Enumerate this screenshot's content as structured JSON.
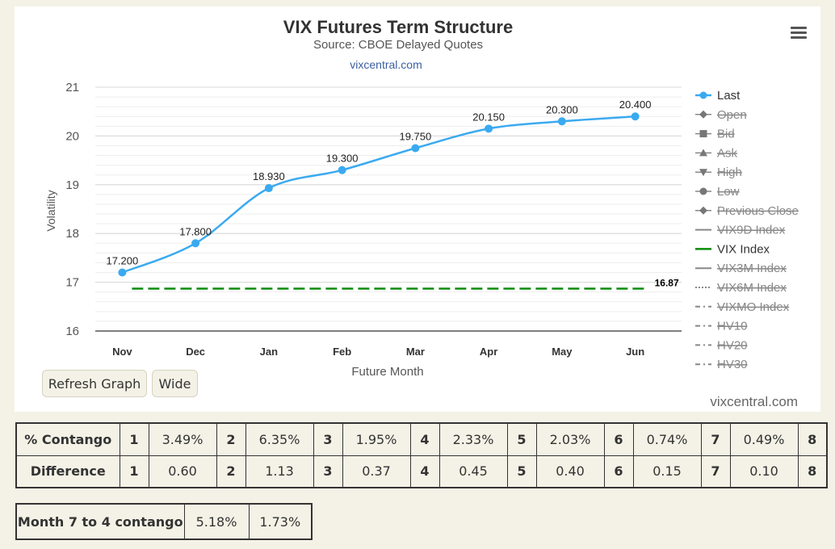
{
  "chart_data": {
    "type": "line",
    "title": "VIX Futures Term Structure",
    "subtitle": "Source: CBOE Delayed Quotes",
    "credit_top": "vixcentral.com",
    "xlabel": "Future Month",
    "ylabel": "Volatility",
    "categories": [
      "Nov",
      "Dec",
      "Jan",
      "Feb",
      "Mar",
      "Apr",
      "May",
      "Jun"
    ],
    "ylim": [
      16,
      21
    ],
    "yticks": [
      "16",
      "17",
      "18",
      "19",
      "20",
      "21"
    ],
    "grid": true,
    "legend_position": "right",
    "series": [
      {
        "name": "Last",
        "values": [
          17.2,
          17.8,
          18.93,
          19.3,
          19.75,
          20.15,
          20.3,
          20.4
        ],
        "labels": [
          "17.200",
          "17.800",
          "18.930",
          "19.300",
          "19.750",
          "20.150",
          "20.300",
          "20.400"
        ],
        "color": "#3aaaf0"
      },
      {
        "name": "VIX Index",
        "value": 16.87,
        "label": "16.87",
        "color": "#0b8c0b"
      }
    ],
    "legend": [
      {
        "name": "Last",
        "symbol": "circle",
        "active": true
      },
      {
        "name": "Open",
        "symbol": "diamond",
        "active": false
      },
      {
        "name": "Bid",
        "symbol": "square",
        "active": false
      },
      {
        "name": "Ask",
        "symbol": "triangle",
        "active": false
      },
      {
        "name": "High",
        "symbol": "triangle-down",
        "active": false
      },
      {
        "name": "Low",
        "symbol": "circle",
        "active": false
      },
      {
        "name": "Previous Close",
        "symbol": "diamond",
        "active": false
      },
      {
        "name": "VIX9D Index",
        "symbol": "line",
        "active": false
      },
      {
        "name": "VIX Index",
        "symbol": "line-green",
        "active": true
      },
      {
        "name": "VIX3M Index",
        "symbol": "line",
        "active": false
      },
      {
        "name": "VIX6M Index",
        "symbol": "dotted",
        "active": false
      },
      {
        "name": "VIXMO Index",
        "symbol": "dashdot",
        "active": false
      },
      {
        "name": "HV10",
        "symbol": "dashdot",
        "active": false
      },
      {
        "name": "HV20",
        "symbol": "dashdot",
        "active": false
      },
      {
        "name": "HV30",
        "symbol": "dashdot",
        "active": false
      }
    ]
  },
  "menu_icon": "hamburger-menu-icon",
  "buttons": {
    "refresh": "Refresh Graph",
    "wide": "Wide"
  },
  "watermark": "vixcentral.com",
  "contango_table": {
    "row1_label": "% Contango",
    "row1": [
      {
        "n": "1",
        "v": "3.49%"
      },
      {
        "n": "2",
        "v": "6.35%"
      },
      {
        "n": "3",
        "v": "1.95%"
      },
      {
        "n": "4",
        "v": "2.33%"
      },
      {
        "n": "5",
        "v": "2.03%"
      },
      {
        "n": "6",
        "v": "0.74%"
      },
      {
        "n": "7",
        "v": "0.49%"
      },
      {
        "n": "8",
        "v": ""
      }
    ],
    "row2_label": "Difference",
    "row2": [
      {
        "n": "1",
        "v": "0.60"
      },
      {
        "n": "2",
        "v": "1.13"
      },
      {
        "n": "3",
        "v": "0.37"
      },
      {
        "n": "4",
        "v": "0.45"
      },
      {
        "n": "5",
        "v": "0.40"
      },
      {
        "n": "6",
        "v": "0.15"
      },
      {
        "n": "7",
        "v": "0.10"
      },
      {
        "n": "8",
        "v": ""
      }
    ]
  },
  "month_table": {
    "label": "Month 7 to 4 contango",
    "v1": "5.18%",
    "v2": "1.73%"
  }
}
